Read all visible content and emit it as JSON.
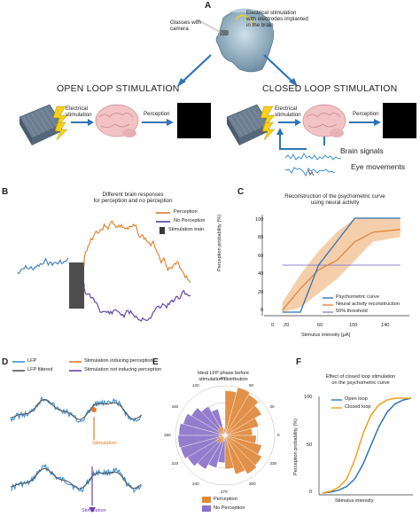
{
  "panelA": {
    "label": "A",
    "glasses_label": "Glasses with\ncamera",
    "electrode_label": "Electrical stimulation\nwith electrodes implanted\nin the brain",
    "open_loop": "OPEN LOOP STIMULATION",
    "closed_loop": "CLOSED LOOP STIMULATION",
    "elec_stim_1": "Electrical\nstimulation",
    "perception_1": "Perception",
    "elec_stim_2": "Electrical\nstimulation",
    "perception_2": "Perception",
    "brain_signals": "Brain signals",
    "eye_movements": "Eye movements"
  },
  "panelB": {
    "label": "B",
    "title": "Different brain responses\nfor perception and no perception",
    "legend": [
      "Perception",
      "No Perception",
      "Stimulation train"
    ],
    "colors": {
      "perception": "#e07b28",
      "no_perception": "#5a3aa0",
      "baseline": "#3a78b8",
      "train": "#3a3a3a"
    }
  },
  "panelC": {
    "label": "C",
    "title": "Reconstruction of the psychometric curve\nusing neural activity",
    "ylabel": "Perception probability (%)",
    "xlabel": "Stimulus intensity [µA]",
    "yticks": [
      "0",
      "20",
      "40",
      "60",
      "80",
      "100"
    ],
    "xticks": [
      "0",
      "20",
      "60",
      "100",
      "140"
    ],
    "legend": [
      "Psychometric curve",
      "Neural activity reconstruction",
      "50% threshold"
    ],
    "colors": {
      "psychometric": "#2f74b5",
      "reconstruction": "#e0853a",
      "band": "#f3c79e",
      "threshold": "#8c86d0"
    }
  },
  "panelD": {
    "label": "D",
    "legend": [
      "LFP",
      "LFP filtered",
      "Stimulation inducing perception",
      "Stimulation not inducing perception"
    ],
    "stim_top": "Stimulation",
    "stim_bottom": "Stimulation",
    "colors": {
      "lfp": "#3f8fd0",
      "filtered": "#555555",
      "induce": "#e07b28",
      "not_induce": "#6a3fb0"
    }
  },
  "panelE": {
    "label": "E",
    "title": "Ideal LFP phase before\nstimulation distribution",
    "angle_labels": [
      "90",
      "60",
      "30",
      "0",
      "330",
      "300",
      "270",
      "240",
      "210",
      "180",
      "150",
      "120"
    ],
    "legend": [
      "Perception",
      "No Perception"
    ],
    "colors": {
      "perception": "#e0883a",
      "no_perception": "#8a72c8"
    }
  },
  "panelF": {
    "label": "F",
    "title": "Effect of closed loop stimulation\non the psychometric curve",
    "ylabel": "Perception probability (%)",
    "xlabel": "Stimulus intensity",
    "yticks": [
      "0",
      "50",
      "100"
    ],
    "legend": [
      "Open loop",
      "Closed loop"
    ],
    "colors": {
      "open": "#2f74b5",
      "closed": "#f0a020"
    }
  },
  "chart_data": [
    {
      "type": "line",
      "ylabel": "Perception probability (%)",
      "xlabel": "Stimulus intensity [µA]",
      "ylim": [
        0,
        100
      ],
      "xlim": [
        0,
        160
      ],
      "series": [
        {
          "name": "Psychometric curve",
          "x": [
            20,
            40,
            60,
            80,
            100,
            120,
            150
          ],
          "values": [
            0,
            0,
            50,
            75,
            100,
            100,
            100
          ]
        },
        {
          "name": "Neural activity reconstruction",
          "x": [
            20,
            40,
            60,
            80,
            100,
            120,
            150
          ],
          "values": [
            2,
            25,
            45,
            55,
            75,
            85,
            88
          ],
          "band_low": [
            0,
            5,
            20,
            35,
            55,
            75,
            80
          ],
          "band_high": [
            10,
            40,
            65,
            85,
            100,
            100,
            100
          ]
        },
        {
          "name": "50% threshold",
          "x": [
            20,
            150
          ],
          "values": [
            50,
            50
          ]
        }
      ]
    },
    {
      "type": "line",
      "ylabel": "Perception probability (%)",
      "xlabel": "Stimulus intensity",
      "ylim": [
        0,
        100
      ],
      "series": [
        {
          "name": "Open loop",
          "values": [
            0,
            1,
            3,
            7,
            15,
            30,
            50,
            70,
            85,
            94,
            98,
            100
          ]
        },
        {
          "name": "Closed loop",
          "values": [
            0,
            2,
            6,
            15,
            35,
            62,
            82,
            93,
            98,
            100,
            100,
            100
          ]
        }
      ]
    }
  ]
}
